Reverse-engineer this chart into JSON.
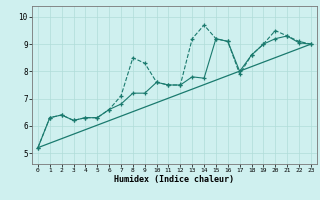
{
  "xlabel": "Humidex (Indice chaleur)",
  "background_color": "#cff0ef",
  "grid_color": "#b0ddd9",
  "line_color": "#1a7a6e",
  "xlim": [
    -0.5,
    23.5
  ],
  "ylim": [
    4.6,
    10.4
  ],
  "xticks": [
    0,
    1,
    2,
    3,
    4,
    5,
    6,
    7,
    8,
    9,
    10,
    11,
    12,
    13,
    14,
    15,
    16,
    17,
    18,
    19,
    20,
    21,
    22,
    23
  ],
  "yticks": [
    5,
    6,
    7,
    8,
    9,
    10
  ],
  "line1": {
    "x": [
      0,
      1,
      2,
      3,
      4,
      5,
      6,
      7,
      8,
      9,
      10,
      11,
      12,
      13,
      14,
      15,
      16,
      17,
      18,
      19,
      20,
      21,
      22,
      23
    ],
    "y": [
      5.2,
      6.3,
      6.4,
      6.2,
      6.3,
      6.3,
      6.6,
      7.1,
      8.5,
      8.3,
      7.6,
      7.5,
      7.5,
      9.2,
      9.7,
      9.2,
      9.1,
      7.9,
      8.6,
      9.0,
      9.5,
      9.3,
      9.1,
      9.0
    ]
  },
  "line2": {
    "x": [
      0,
      1,
      2,
      3,
      4,
      5,
      6,
      7,
      8,
      9,
      10,
      11,
      12,
      13,
      14,
      15,
      16,
      17,
      18,
      19,
      20,
      21,
      22,
      23
    ],
    "y": [
      5.2,
      6.3,
      6.4,
      6.2,
      6.3,
      6.3,
      6.6,
      6.8,
      7.2,
      7.2,
      7.6,
      7.5,
      7.5,
      7.8,
      7.75,
      9.2,
      9.1,
      8.0,
      8.6,
      9.0,
      9.2,
      9.3,
      9.05,
      9.0
    ]
  },
  "line3": {
    "x": [
      0,
      23
    ],
    "y": [
      5.2,
      9.0
    ]
  }
}
